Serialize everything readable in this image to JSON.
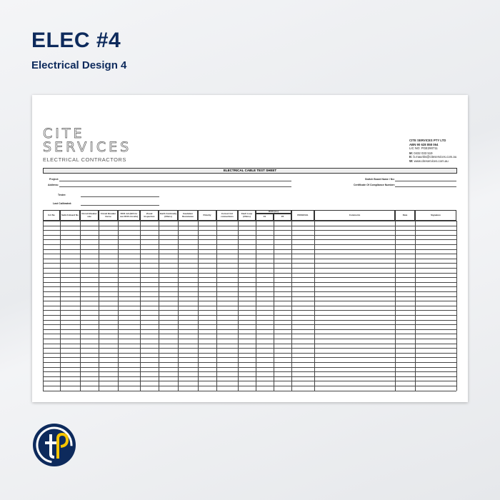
{
  "header": {
    "title": "ELEC #4",
    "subtitle": "Electrical Design 4"
  },
  "document": {
    "logo_line1": "CITE",
    "logo_line2": "SERVICES",
    "logo_sub": "ELECTRICAL CONTRACTORS",
    "company": {
      "name": "CITE SERVICES PTY LTD",
      "abn": "ABN 90 628 858 064",
      "lic": "LIC NO: PGE290711",
      "mobile_label": "M:",
      "mobile": "0432 033 519",
      "email_label": "E:",
      "email": "b.mauritis@citeservices.com.au",
      "web_label": "W:",
      "web": "www.citeservices.com.au"
    },
    "sheet_title": "ELECTRICAL CABLE TEST SHEET",
    "fields": {
      "project": "Project:",
      "address": "Address:",
      "tester": "Tester:",
      "last_calibrated": "Last Calibrated:",
      "switch_board": "Switch Board Name / No:",
      "certificate": "Certificate Of Compliance Number:"
    },
    "columns": [
      "Cct No",
      "Switch Board No",
      "Circuit Breaker size",
      "Circuit Breaker Curve",
      "RCD mA (N/A for non RCD circuits)",
      "Visual Inspection",
      "Earth Continuity (Ohms)",
      "Insulation Resistance",
      "Polarity",
      "Correct Cct connections",
      "Fault Loop (Ohms)",
      "RCD (ms)",
      "PASS/FAIL",
      "Comments",
      "Date",
      "Signature"
    ],
    "rcd_sub": [
      "X1",
      "X5"
    ]
  },
  "colors": {
    "brand_navy": "#0d2a5c",
    "brand_yellow": "#f5c400"
  }
}
